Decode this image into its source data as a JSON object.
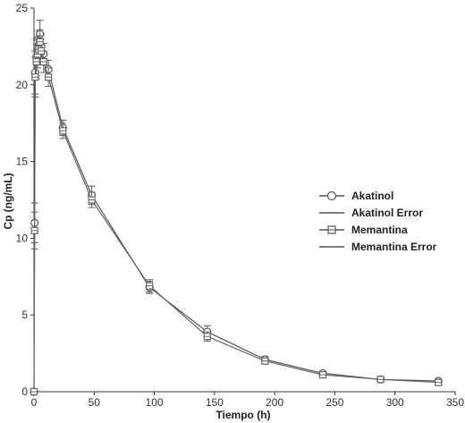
{
  "chart_data": {
    "type": "line",
    "xlabel": "Tiempo (h)",
    "ylabel": "Cp (ng/mL)",
    "xlim": [
      0,
      350
    ],
    "ylim": [
      0,
      25
    ],
    "xticks": [
      0,
      50,
      100,
      150,
      200,
      250,
      300,
      350
    ],
    "yticks": [
      0,
      5,
      10,
      15,
      20,
      25
    ],
    "grid": false,
    "legend_position": "right",
    "series": [
      {
        "name": "Akatinol",
        "marker": "circle",
        "color": "#555555",
        "x": [
          0,
          0.5,
          1,
          2,
          3,
          4,
          5,
          6,
          8,
          12,
          24,
          48,
          96,
          144,
          192,
          240,
          288,
          336
        ],
        "y": [
          0,
          11.0,
          20.8,
          21.8,
          22.2,
          22.6,
          23.3,
          22.5,
          22.0,
          21.0,
          17.2,
          12.8,
          6.8,
          3.9,
          2.1,
          1.2,
          0.8,
          0.7
        ],
        "err": [
          0,
          1.3,
          1.4,
          1.2,
          0.9,
          0.9,
          0.9,
          0.8,
          0.7,
          0.6,
          0.5,
          0.6,
          0.4,
          0.4,
          0.2,
          0.1,
          0.1,
          0.1
        ]
      },
      {
        "name": "Memantina",
        "marker": "square",
        "color": "#666666",
        "x": [
          0,
          0.5,
          1,
          2,
          3,
          4,
          5,
          6,
          8,
          12,
          24,
          48,
          96,
          144,
          192,
          240,
          288,
          336
        ],
        "y": [
          0,
          10.5,
          20.5,
          21.5,
          22.0,
          22.3,
          22.8,
          22.2,
          21.5,
          20.5,
          17.0,
          12.5,
          6.9,
          3.6,
          2.0,
          1.1,
          0.8,
          0.6
        ],
        "err": [
          0,
          1.2,
          1.3,
          1.1,
          0.9,
          0.9,
          0.8,
          0.8,
          0.7,
          0.6,
          0.5,
          0.5,
          0.4,
          0.3,
          0.2,
          0.1,
          0.1,
          0.1
        ]
      }
    ],
    "legend": {
      "entries": [
        "Akatinol",
        "Akatinol Error",
        "Memantina",
        "Memantina Error"
      ]
    }
  }
}
